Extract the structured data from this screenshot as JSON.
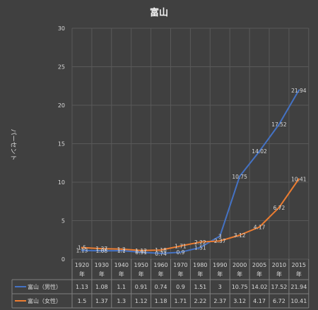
{
  "chart_data": {
    "type": "line",
    "title": "富山",
    "ylabel": "パーセント",
    "ylim": [
      0,
      30
    ],
    "yticks": [
      0,
      5,
      10,
      15,
      20,
      25,
      30
    ],
    "grid": true,
    "legend": "table",
    "categories": [
      [
        "1920",
        "年"
      ],
      [
        "1930",
        "年"
      ],
      [
        "1940",
        "年"
      ],
      [
        "1950",
        "年"
      ],
      [
        "1960",
        "年"
      ],
      [
        "1970",
        "年"
      ],
      [
        "1980",
        "年"
      ],
      [
        "1990",
        "年"
      ],
      [
        "2000",
        "年"
      ],
      [
        "2005",
        "年"
      ],
      [
        "2010",
        "年"
      ],
      [
        "2015",
        "年"
      ]
    ],
    "series": [
      {
        "name": "富山（男性）",
        "color": "#4472c4",
        "values": [
          1.13,
          1.08,
          1.1,
          0.91,
          0.74,
          0.9,
          1.51,
          3,
          10.75,
          14.02,
          17.52,
          21.94
        ],
        "labels": [
          "1.13",
          "1.08",
          "1.1",
          "0.91",
          "0.74",
          "0.9",
          "1.51",
          "3",
          "10.75",
          "14.02",
          "17.52",
          "21.94"
        ]
      },
      {
        "name": "富山（女性）",
        "color": "#ed7d31",
        "values": [
          1.5,
          1.37,
          1.3,
          1.12,
          1.18,
          1.71,
          2.22,
          2.37,
          3.12,
          4.17,
          6.72,
          10.41
        ],
        "labels": [
          "1.5",
          "1.37",
          "1.3",
          "1.12",
          "1.18",
          "1.71",
          "2.22",
          "2.37",
          "3.12",
          "4.17",
          "6.72",
          "10.41"
        ]
      }
    ]
  }
}
